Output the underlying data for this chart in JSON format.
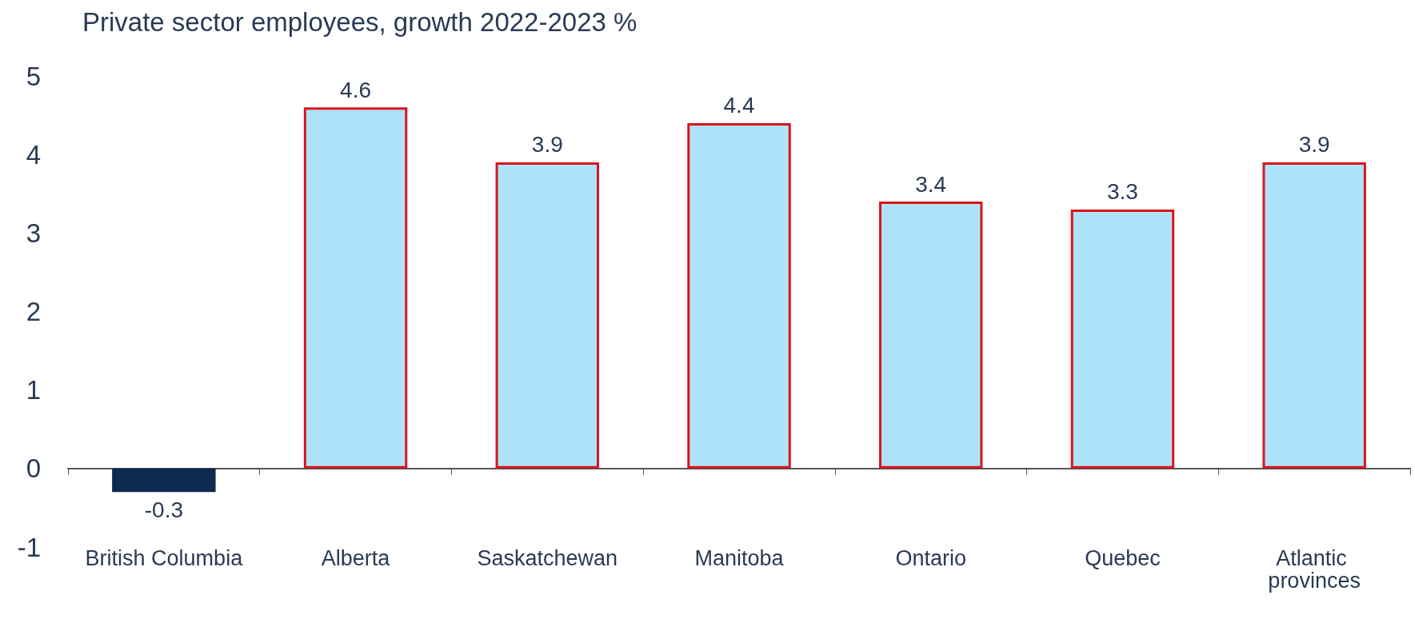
{
  "chart_data": {
    "type": "bar",
    "title": "Private sector employees, growth 2022-2023 %",
    "categories": [
      "British Columbia",
      "Alberta",
      "Saskatchewan",
      "Manitoba",
      "Ontario",
      "Quebec",
      "Atlantic provinces"
    ],
    "values": [
      -0.3,
      4.6,
      3.9,
      4.4,
      3.4,
      3.3,
      3.9
    ],
    "colors": [
      "#0d2a4f",
      "#aee3fa",
      "#aee3fa",
      "#aee3fa",
      "#aee3fa",
      "#aee3fa",
      "#aee3fa"
    ],
    "ylim": [
      -1,
      5
    ],
    "yticks": [
      -1,
      0,
      1,
      2,
      3,
      4,
      5
    ],
    "data_labels": true
  }
}
